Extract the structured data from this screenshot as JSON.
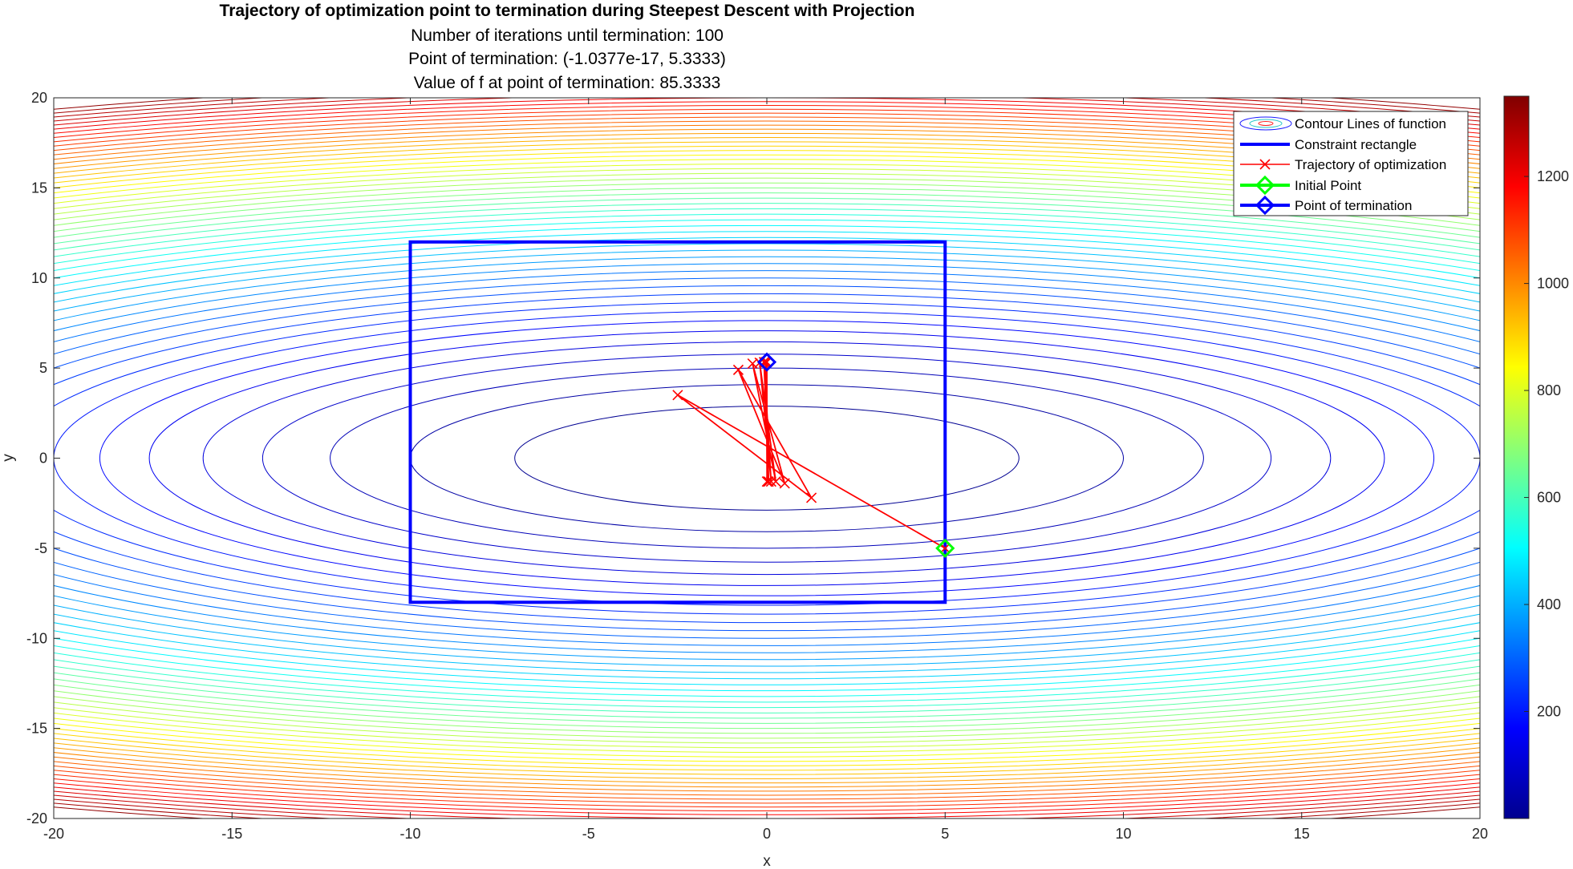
{
  "chart_data": {
    "type": "contour",
    "title": "Trajectory of optimization point to termination during Steepest Descent with Projection",
    "subtitles": [
      "Number of iterations until termination: 100",
      "Point of termination: (-1.0377e-17, 5.3333)",
      "Value of f at point of termination: 85.3333"
    ],
    "xlabel": "x",
    "ylabel": "y",
    "xlim": [
      -20,
      20
    ],
    "ylim": [
      -20,
      20
    ],
    "xticks": [
      -20,
      -15,
      -10,
      -5,
      0,
      5,
      10,
      15,
      20
    ],
    "yticks": [
      -20,
      -15,
      -10,
      -5,
      0,
      5,
      10,
      15,
      20
    ],
    "grid": false,
    "legend_position": "top-right",
    "legend": [
      "Contour Lines of function",
      "Constraint rectangle",
      "Trajectory of optimization",
      "Initial Point",
      "Point of termination"
    ],
    "colorbar": {
      "colormap": "jet",
      "limits": [
        0,
        1350
      ],
      "ticks": [
        200,
        400,
        600,
        800,
        1000,
        1200
      ]
    },
    "contour": {
      "function": "f(x,y) = 0.5*x^2 + 3*y^2",
      "levels_from": 25,
      "levels_to": 1325,
      "levels_step": 25
    },
    "constraint_rectangle": {
      "x": [
        -10,
        5
      ],
      "y": [
        -8,
        12
      ],
      "color": "#0000ff"
    },
    "trajectory": {
      "color": "#ff0000",
      "x": [
        5,
        -2.5,
        1.25,
        -0.8,
        0.5,
        -0.4,
        0.25,
        -0.2,
        0.12,
        -0.08,
        0.05,
        -0.03,
        0.02,
        -0.01,
        0.005,
        0
      ],
      "y": [
        -5,
        3.5,
        -2.2,
        4.9,
        -1.4,
        5.25,
        -1.3,
        5.3,
        -1.3,
        5.33,
        -1.3,
        5.33,
        -1.3,
        5.333,
        -1.3,
        5.3333
      ]
    },
    "initial_point": {
      "x": 5,
      "y": -5,
      "color": "#00ff00"
    },
    "termination_point": {
      "x": -1.0377e-17,
      "y": 5.3333,
      "color": "#0000ff"
    }
  }
}
